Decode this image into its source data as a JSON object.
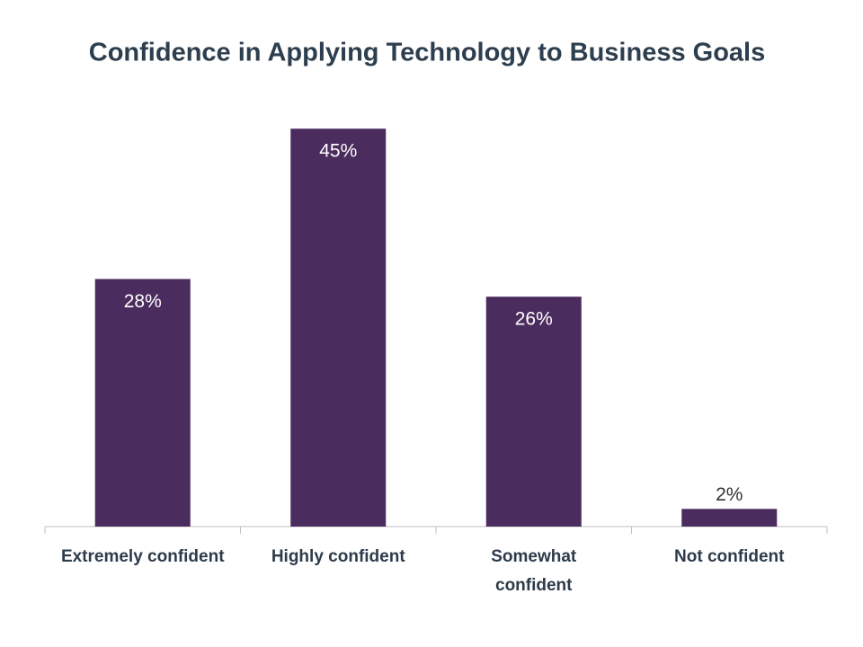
{
  "chart_data": {
    "type": "bar",
    "title": "Confidence in Applying Technology to Business Goals",
    "categories": [
      "Extremely confident",
      "Highly confident",
      "Somewhat confident",
      "Not confident"
    ],
    "values": [
      28,
      45,
      26,
      2
    ],
    "value_labels": [
      "28%",
      "45%",
      "26%",
      "2%"
    ],
    "color": "#4b2c5e",
    "ylim": [
      0,
      50
    ]
  }
}
